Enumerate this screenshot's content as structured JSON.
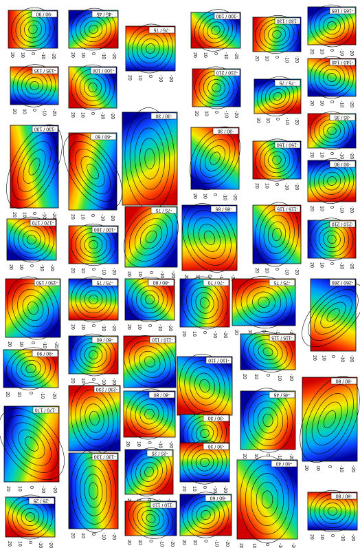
{
  "panels": [
    {
      "label": "-90 / 90"
    },
    {
      "label": "-45 / 45"
    },
    {
      "label": "-75 / 75"
    },
    {
      "label": "-100 / 100"
    },
    {
      "label": "-130 / 130"
    },
    {
      "label": "-165 / 165"
    },
    {
      "label": "-135 / 135"
    },
    {
      "label": "-100 / 100"
    },
    {
      "label": "-210 / 210"
    },
    {
      "label": "-75 / 75"
    },
    {
      "label": "-140 / 140"
    },
    {
      "label": "-130 / 130"
    },
    {
      "label": "-60 / 60"
    },
    {
      "label": "-30 / 30"
    },
    {
      "label": "-30 / 30"
    },
    {
      "label": "-150 / 150"
    },
    {
      "label": "-35 / 35"
    },
    {
      "label": "-90 / 90"
    },
    {
      "label": "-170 / 170"
    },
    {
      "label": "-100 / 100"
    },
    {
      "label": "-75 / 75"
    },
    {
      "label": "-85 / 85"
    },
    {
      "label": "-115 / 115"
    },
    {
      "label": "-210 / 210"
    },
    {
      "label": "-150 / 150"
    },
    {
      "label": "-75 / 75"
    },
    {
      "label": "-80 / 80"
    },
    {
      "label": "-70 / 70"
    },
    {
      "label": "-75 / 75"
    },
    {
      "label": "-260 / 260"
    },
    {
      "label": "-90 / 90"
    },
    {
      "label": "-60 / 60"
    },
    {
      "label": "-110 / 110"
    },
    {
      "label": "-110 / 110"
    },
    {
      "label": "-115 / 115"
    },
    {
      "label": "-170 / 170"
    },
    {
      "label": "-230 / 230"
    },
    {
      "label": "-80 / 80"
    },
    {
      "label": "-30 / 30"
    },
    {
      "label": "-45 / 45"
    },
    {
      "label": "-80 / 80"
    },
    {
      "label": "-25 / 25"
    },
    {
      "label": "-130 / 130"
    },
    {
      "label": "-25 / 25"
    },
    {
      "label": "-30 / 30"
    },
    {
      "label": "-40 / 40"
    },
    {
      "label": "-110 / 110"
    },
    {
      "label": "-60 / 60"
    },
    {
      "label": "-80 / 80"
    }
  ],
  "axis_ticks": [
    "20",
    "10",
    "0",
    "-10",
    "-20"
  ]
}
